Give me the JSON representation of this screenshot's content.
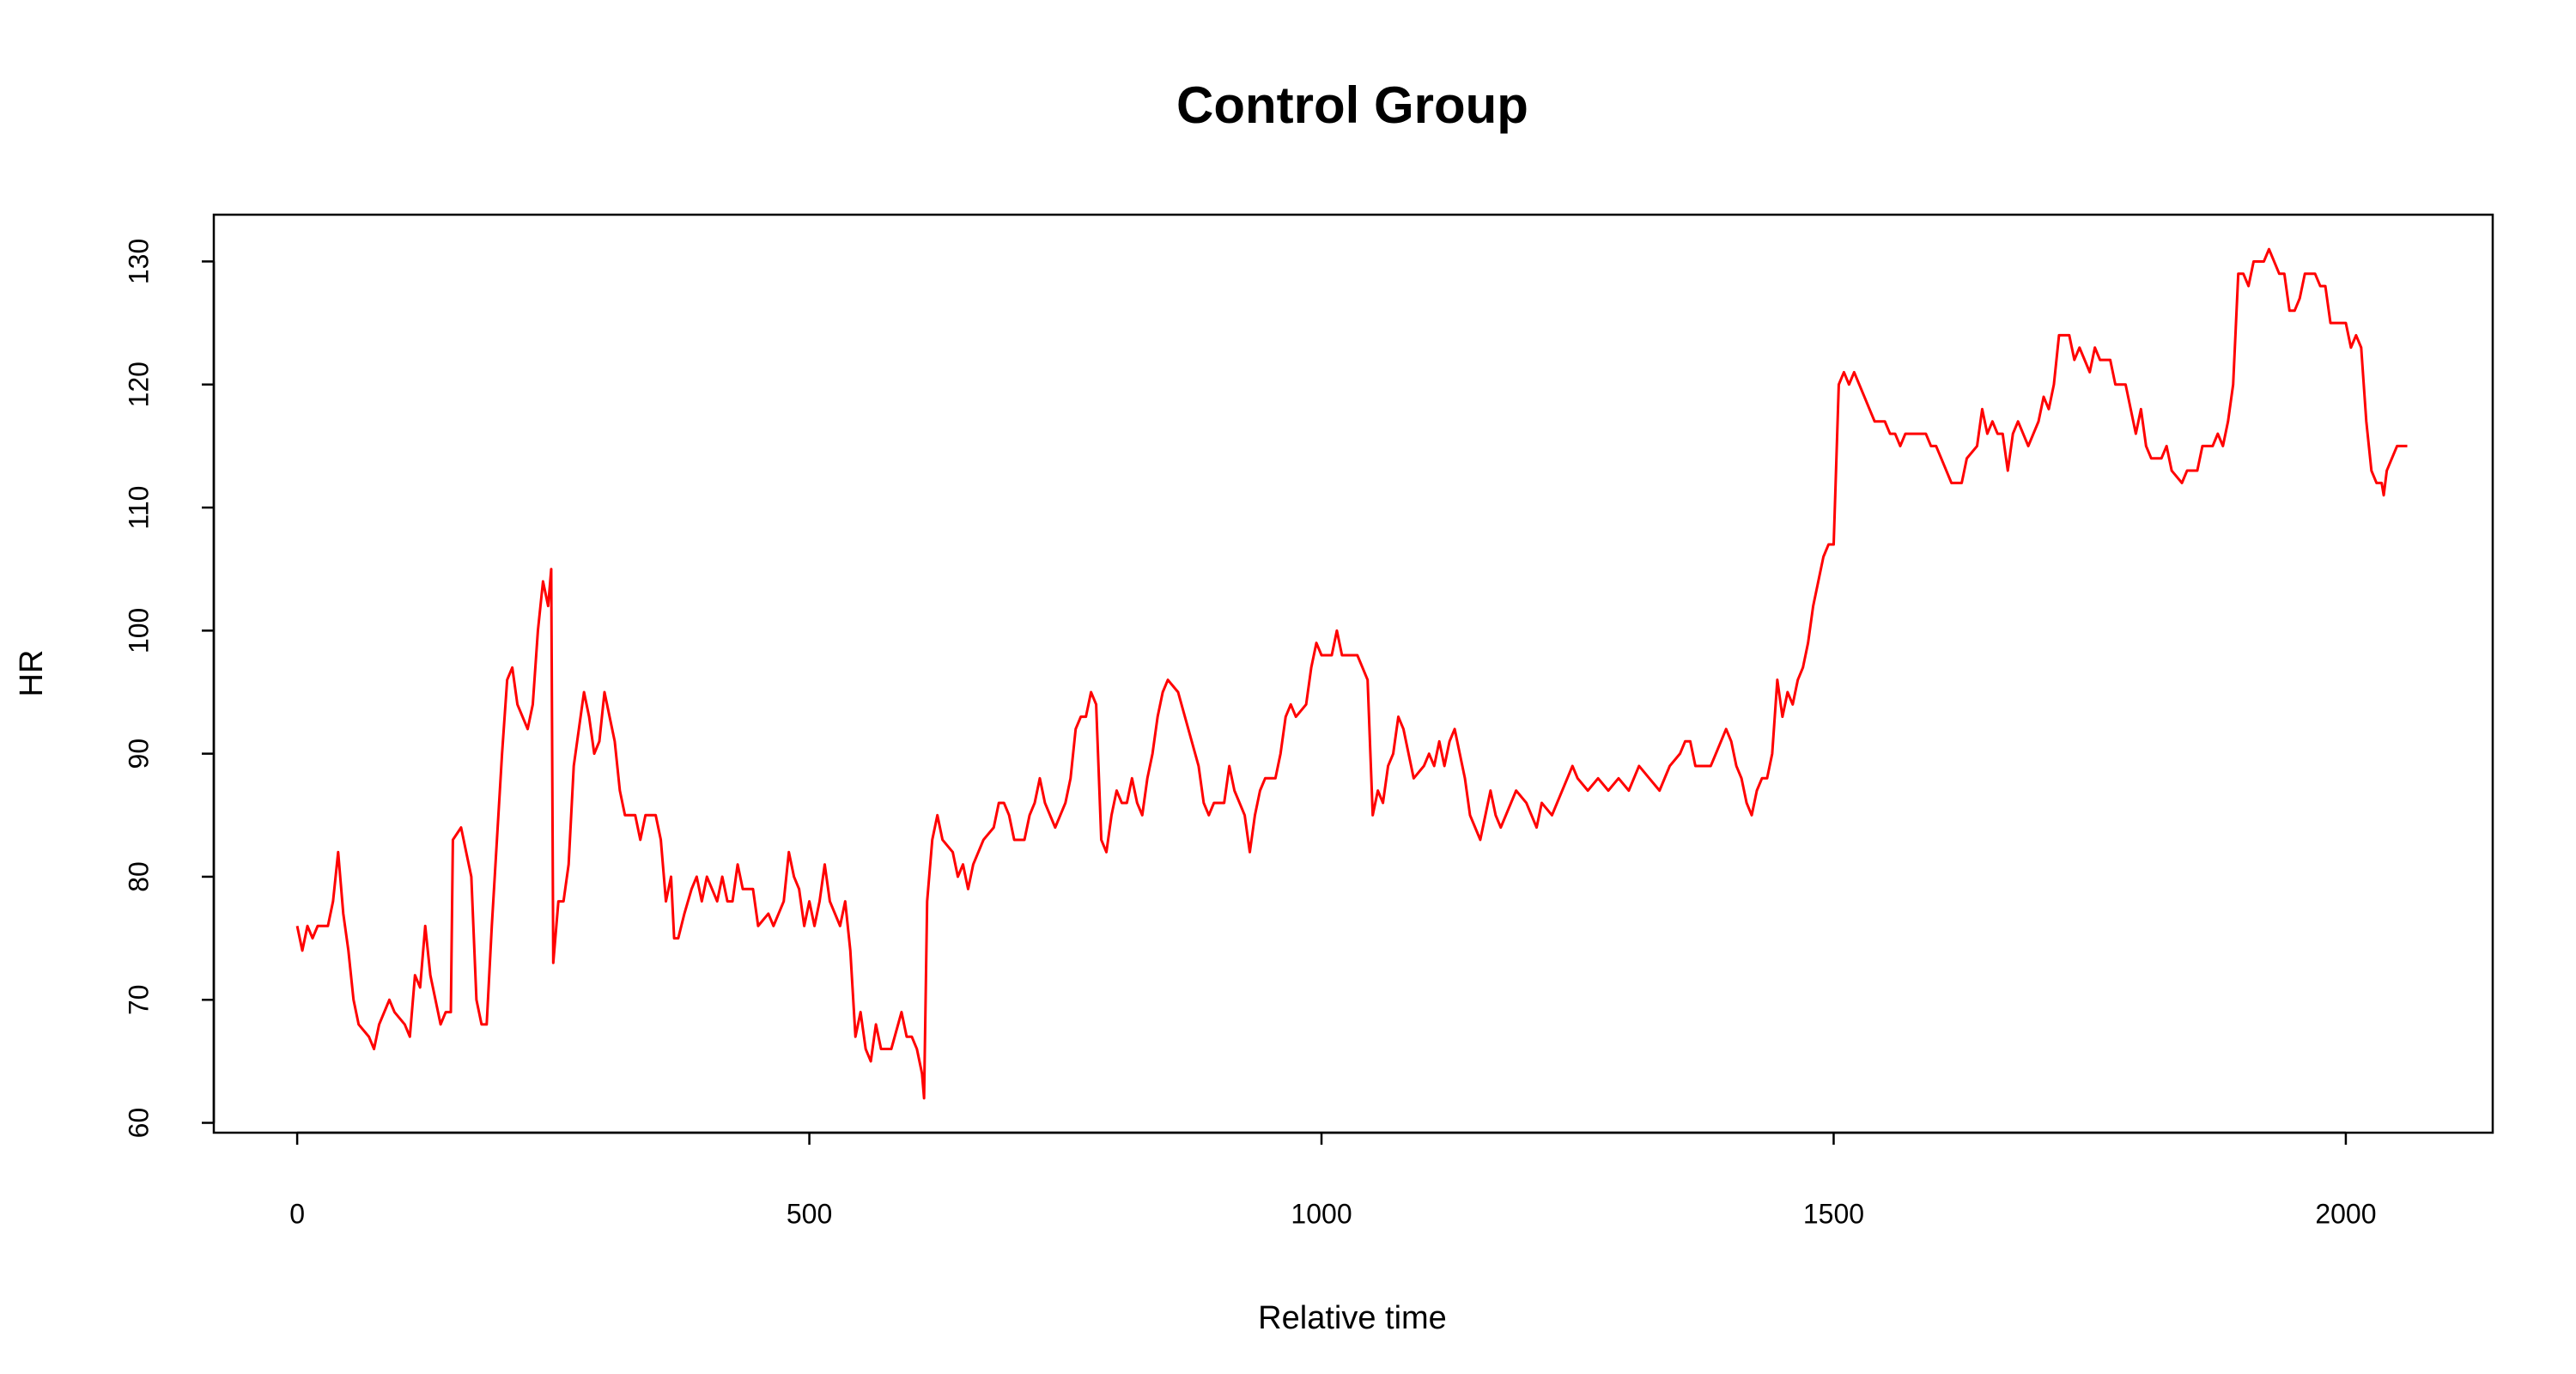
{
  "chart_data": {
    "type": "line",
    "title": "Control Group",
    "x_label": "Relative time",
    "y_label": "HR",
    "color": "#ff0000",
    "x": [
      0,
      5,
      10,
      15,
      20,
      30,
      35,
      40,
      45,
      50,
      55,
      60,
      70,
      75,
      80,
      90,
      95,
      105,
      110,
      115,
      120,
      125,
      130,
      140,
      145,
      150,
      152,
      160,
      165,
      170,
      175,
      180,
      185,
      190,
      200,
      205,
      210,
      215,
      225,
      230,
      235,
      240,
      245,
      248,
      250,
      255,
      260,
      265,
      270,
      275,
      280,
      285,
      290,
      295,
      300,
      305,
      310,
      315,
      320,
      330,
      335,
      340,
      350,
      355,
      360,
      365,
      368,
      372,
      378,
      385,
      390,
      395,
      400,
      410,
      415,
      420,
      425,
      430,
      435,
      445,
      450,
      460,
      465,
      470,
      475,
      480,
      485,
      490,
      495,
      500,
      505,
      510,
      515,
      520,
      530,
      535,
      540,
      545,
      550,
      555,
      560,
      565,
      570,
      580,
      590,
      595,
      600,
      605,
      610,
      612,
      615,
      620,
      625,
      630,
      640,
      645,
      650,
      655,
      660,
      670,
      680,
      685,
      690,
      695,
      700,
      710,
      715,
      720,
      725,
      730,
      740,
      745,
      750,
      755,
      760,
      765,
      770,
      775,
      780,
      785,
      790,
      795,
      800,
      805,
      810,
      815,
      820,
      825,
      830,
      835,
      840,
      845,
      850,
      860,
      870,
      880,
      885,
      890,
      895,
      905,
      910,
      915,
      920,
      925,
      930,
      935,
      940,
      945,
      955,
      960,
      965,
      970,
      975,
      985,
      990,
      995,
      1000,
      1005,
      1010,
      1015,
      1020,
      1035,
      1040,
      1045,
      1050,
      1055,
      1060,
      1065,
      1070,
      1075,
      1080,
      1085,
      1090,
      1100,
      1105,
      1110,
      1115,
      1120,
      1125,
      1130,
      1135,
      1140,
      1145,
      1150,
      1155,
      1160,
      1165,
      1170,
      1175,
      1180,
      1185,
      1190,
      1200,
      1205,
      1210,
      1215,
      1225,
      1230,
      1240,
      1245,
      1250,
      1260,
      1270,
      1280,
      1290,
      1300,
      1310,
      1320,
      1330,
      1340,
      1350,
      1355,
      1360,
      1365,
      1380,
      1385,
      1395,
      1400,
      1405,
      1410,
      1415,
      1420,
      1425,
      1430,
      1435,
      1440,
      1445,
      1450,
      1455,
      1460,
      1465,
      1470,
      1475,
      1480,
      1485,
      1490,
      1495,
      1500,
      1505,
      1510,
      1515,
      1520,
      1525,
      1530,
      1535,
      1540,
      1550,
      1555,
      1560,
      1565,
      1570,
      1580,
      1590,
      1595,
      1600,
      1605,
      1610,
      1615,
      1625,
      1630,
      1640,
      1645,
      1650,
      1655,
      1660,
      1665,
      1670,
      1675,
      1680,
      1685,
      1690,
      1695,
      1700,
      1705,
      1710,
      1715,
      1720,
      1730,
      1735,
      1740,
      1750,
      1755,
      1760,
      1770,
      1775,
      1785,
      1790,
      1795,
      1800,
      1805,
      1810,
      1820,
      1825,
      1830,
      1840,
      1845,
      1855,
      1860,
      1870,
      1875,
      1880,
      1885,
      1890,
      1895,
      1900,
      1905,
      1910,
      1920,
      1925,
      1930,
      1935,
      1940,
      1945,
      1950,
      1955,
      1960,
      1970,
      1975,
      1980,
      1985,
      2000,
      2005,
      2010,
      2015,
      2020,
      2025,
      2030,
      2035,
      2037,
      2040,
      2045,
      2050,
      2060
    ],
    "values": [
      76,
      74,
      76,
      75,
      76,
      76,
      78,
      82,
      77,
      74,
      70,
      68,
      67,
      66,
      68,
      70,
      69,
      68,
      67,
      72,
      71,
      76,
      72,
      68,
      69,
      69,
      83,
      84,
      82,
      80,
      70,
      68,
      68,
      76,
      90,
      96,
      97,
      94,
      92,
      94,
      100,
      104,
      102,
      105,
      73,
      78,
      78,
      81,
      89,
      92,
      95,
      93,
      90,
      91,
      95,
      93,
      91,
      87,
      85,
      85,
      83,
      85,
      85,
      83,
      78,
      80,
      75,
      75,
      77,
      79,
      80,
      78,
      80,
      78,
      80,
      78,
      78,
      81,
      79,
      79,
      76,
      77,
      76,
      77,
      78,
      82,
      80,
      79,
      76,
      78,
      76,
      78,
      81,
      78,
      76,
      78,
      74,
      67,
      69,
      66,
      65,
      68,
      66,
      66,
      69,
      67,
      67,
      66,
      64,
      62,
      78,
      83,
      85,
      83,
      82,
      80,
      81,
      79,
      81,
      83,
      84,
      86,
      86,
      85,
      83,
      83,
      85,
      86,
      88,
      86,
      84,
      85,
      86,
      88,
      92,
      93,
      93,
      95,
      94,
      83,
      82,
      85,
      87,
      86,
      86,
      88,
      86,
      85,
      88,
      90,
      93,
      95,
      96,
      95,
      92,
      89,
      86,
      85,
      86,
      86,
      89,
      87,
      86,
      85,
      82,
      85,
      87,
      88,
      88,
      90,
      93,
      94,
      93,
      94,
      97,
      99,
      98,
      98,
      98,
      100,
      98,
      98,
      97,
      96,
      85,
      87,
      86,
      89,
      90,
      93,
      92,
      90,
      88,
      89,
      90,
      89,
      91,
      89,
      91,
      92,
      90,
      88,
      85,
      84,
      83,
      85,
      87,
      85,
      84,
      85,
      86,
      87,
      86,
      85,
      84,
      86,
      85,
      86,
      88,
      89,
      88,
      87,
      88,
      87,
      88,
      87,
      89,
      88,
      87,
      89,
      90,
      91,
      91,
      89,
      89,
      90,
      92,
      91,
      89,
      88,
      86,
      85,
      87,
      88,
      88,
      90,
      96,
      93,
      95,
      94,
      96,
      97,
      99,
      102,
      104,
      106,
      107,
      107,
      120,
      121,
      120,
      121,
      120,
      119,
      118,
      117,
      117,
      116,
      116,
      115,
      116,
      116,
      116,
      115,
      115,
      114,
      113,
      112,
      112,
      114,
      115,
      118,
      116,
      117,
      116,
      116,
      113,
      116,
      117,
      116,
      115,
      116,
      117,
      119,
      118,
      120,
      124,
      124,
      122,
      123,
      121,
      123,
      122,
      122,
      120,
      120,
      118,
      116,
      118,
      115,
      114,
      114,
      115,
      113,
      112,
      113,
      113,
      115,
      115,
      116,
      115,
      117,
      120,
      129,
      129,
      128,
      130,
      130,
      131,
      130,
      129,
      129,
      126,
      126,
      127,
      129,
      129,
      128,
      128,
      125,
      125,
      123,
      124,
      123,
      117,
      113,
      112,
      112,
      111,
      113,
      114,
      115,
      115
    ],
    "xlim": [
      -81.4,
      2143.4
    ],
    "ylim": [
      59.2,
      133.8
    ],
    "xticks": [
      0,
      500,
      1000,
      1500,
      2000
    ],
    "yticks": [
      60,
      70,
      80,
      90,
      100,
      110,
      120,
      130
    ]
  }
}
